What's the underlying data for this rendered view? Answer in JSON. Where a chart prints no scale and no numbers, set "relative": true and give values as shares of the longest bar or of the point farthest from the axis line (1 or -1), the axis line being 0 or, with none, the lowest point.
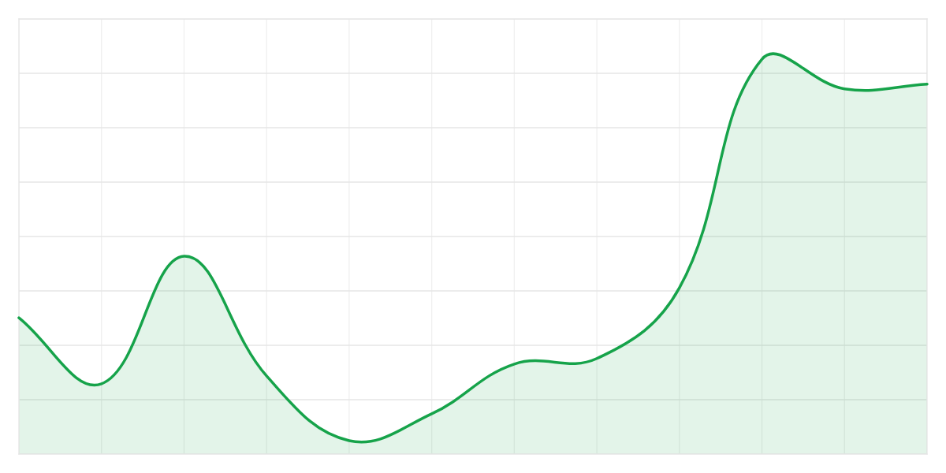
{
  "chart_data": {
    "type": "area",
    "relative": true,
    "grid": true,
    "categories": [
      null,
      null,
      null,
      null,
      null,
      null,
      null,
      null,
      null,
      null,
      null,
      null
    ],
    "series": [
      {
        "color": "#16a34a",
        "values": [
          0.345,
          0.178,
          0.501,
          0.198,
          0.034,
          0.102,
          0.228,
          0.242,
          0.421,
          1.0,
          0.925,
          0.937
        ]
      }
    ]
  }
}
